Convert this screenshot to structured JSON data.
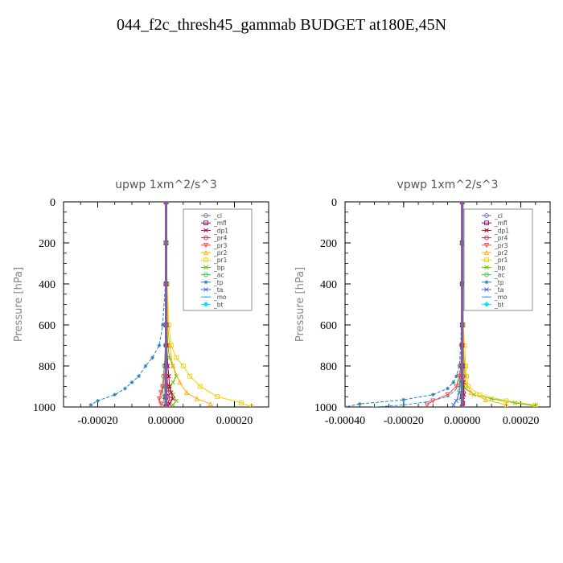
{
  "page": {
    "title": "044_f2c_thresh45_gammab  BUDGET at180E,45N"
  },
  "chart_data": [
    {
      "type": "line",
      "title": "upwp   1xm^2/s^3",
      "ylabel": "Pressure [hPa]",
      "xlim": [
        -0.0003,
        0.0003
      ],
      "ylim": [
        1000,
        0
      ],
      "xticks": [
        -0.0002,
        0,
        0.0002
      ],
      "xtick_labels": [
        "-0.00020",
        "0.00000",
        "0.00020"
      ],
      "yticks": [
        0,
        200,
        400,
        600,
        800,
        1000
      ],
      "ytick_labels": [
        "0",
        "200",
        "400",
        "600",
        "800",
        "1000"
      ],
      "legend": "top-right",
      "grid": false,
      "series": [
        {
          "name": "_cl",
          "color": "#8060a0",
          "marker": "o",
          "x": [
            0,
            0,
            0,
            0,
            0,
            0,
            0
          ],
          "y": [
            0,
            200,
            400,
            600,
            800,
            950,
            1000
          ]
        },
        {
          "name": "_mfl",
          "color": "#800080",
          "marker": "s",
          "x": [
            0,
            0,
            0,
            0,
            0,
            0,
            0
          ],
          "y": [
            0,
            200,
            400,
            600,
            800,
            950,
            1000
          ]
        },
        {
          "name": "_dp1",
          "color": "#a00030",
          "marker": "x",
          "x": [
            0,
            0,
            2e-06,
            5e-06,
            8e-06,
            1e-05,
            1.5e-05,
            2e-05,
            1e-05,
            0
          ],
          "y": [
            0,
            400,
            700,
            800,
            850,
            900,
            930,
            960,
            985,
            1000
          ]
        },
        {
          "name": "_pr4",
          "color": "#e02040",
          "marker": "o",
          "x": [
            0,
            0,
            0,
            2e-06,
            3e-06,
            5e-06,
            8e-06,
            1e-05,
            5e-06,
            0
          ],
          "y": [
            0,
            400,
            700,
            800,
            850,
            900,
            930,
            960,
            985,
            1000
          ]
        },
        {
          "name": "_pr3",
          "color": "#ff4040",
          "marker": "v",
          "x": [
            0,
            0,
            0,
            -2e-06,
            -5e-06,
            -1e-05,
            -1.5e-05,
            -2e-05,
            -1.5e-05,
            0
          ],
          "y": [
            0,
            400,
            700,
            800,
            850,
            900,
            930,
            960,
            985,
            1000
          ]
        },
        {
          "name": "_pr2",
          "color": "#ffb000",
          "marker": "^",
          "x": [
            0,
            0,
            2e-06,
            5e-06,
            1e-05,
            2e-05,
            4e-05,
            6e-05,
            9e-05,
            0.00013
          ],
          "y": [
            0,
            200,
            400,
            600,
            700,
            800,
            880,
            930,
            960,
            985
          ]
        },
        {
          "name": "_pr1",
          "color": "#f0d000",
          "marker": "s",
          "x": [
            0,
            0,
            3e-06,
            8e-06,
            1.5e-05,
            3e-05,
            5e-05,
            7e-05,
            0.0001,
            0.00015,
            0.00022,
            0.00025
          ],
          "y": [
            0,
            200,
            400,
            600,
            700,
            760,
            800,
            850,
            900,
            950,
            980,
            1000
          ]
        },
        {
          "name": "_bp",
          "color": "#60c000",
          "marker": "x",
          "x": [
            0,
            0,
            5e-06,
            1e-05,
            2e-05,
            3e-05,
            2e-05,
            1e-05,
            2e-05,
            3e-05,
            2e-05
          ],
          "y": [
            0,
            400,
            700,
            760,
            800,
            850,
            880,
            910,
            940,
            970,
            990
          ]
        },
        {
          "name": "_ac",
          "color": "#40c040",
          "marker": "o",
          "x": [
            0,
            0,
            -2e-06,
            -5e-06,
            -8e-06,
            -1e-05,
            -8e-06,
            -5e-06,
            0
          ],
          "y": [
            0,
            400,
            700,
            800,
            850,
            900,
            950,
            985,
            1000
          ]
        },
        {
          "name": "_tp",
          "color": "#2080c0",
          "marker": "*",
          "x": [
            0,
            0,
            -2e-06,
            -1e-05,
            -2e-05,
            -4e-05,
            -6e-05,
            -8e-05,
            -0.0001,
            -0.00012,
            -0.00015,
            -0.0002,
            -0.00022
          ],
          "y": [
            0,
            200,
            400,
            600,
            700,
            760,
            800,
            850,
            880,
            910,
            940,
            970,
            990
          ]
        },
        {
          "name": "_ta",
          "color": "#4060e0",
          "marker": "x",
          "x": [
            0,
            0,
            0,
            -2e-06,
            -4e-06,
            -3e-06,
            0
          ],
          "y": [
            0,
            400,
            700,
            800,
            900,
            960,
            1000
          ]
        },
        {
          "name": "_mo",
          "color": "#20a0d0",
          "marker": "-",
          "x": [
            0,
            0,
            0,
            0,
            0
          ],
          "y": [
            0,
            400,
            700,
            900,
            1000
          ]
        },
        {
          "name": "_bt",
          "color": "#00e0ff",
          "marker": "D",
          "x": [
            0,
            0,
            0,
            0,
            0
          ],
          "y": [
            0,
            400,
            700,
            900,
            1000
          ]
        }
      ]
    },
    {
      "type": "line",
      "title": "vpwp   1xm^2/s^3",
      "ylabel": "Pressure [hPa]",
      "xlim": [
        -0.0004,
        0.0003
      ],
      "ylim": [
        1000,
        0
      ],
      "xticks": [
        -0.0004,
        -0.0002,
        0,
        0.0002
      ],
      "xtick_labels": [
        "-0.00040",
        "-0.00020",
        "0.00000",
        "0.00020"
      ],
      "yticks": [
        0,
        200,
        400,
        600,
        800,
        1000
      ],
      "ytick_labels": [
        "0",
        "200",
        "400",
        "600",
        "800",
        "1000"
      ],
      "legend": "top-right",
      "grid": false,
      "series": [
        {
          "name": "_cl",
          "color": "#8060a0",
          "marker": "o",
          "x": [
            0,
            0,
            0,
            0,
            0,
            0,
            0
          ],
          "y": [
            0,
            200,
            400,
            600,
            800,
            950,
            1000
          ]
        },
        {
          "name": "_mfl",
          "color": "#800080",
          "marker": "s",
          "x": [
            0,
            0,
            0,
            0,
            0,
            0,
            0
          ],
          "y": [
            0,
            200,
            400,
            600,
            800,
            950,
            1000
          ]
        },
        {
          "name": "_dp1",
          "color": "#a00030",
          "marker": "x",
          "x": [
            0,
            0,
            0,
            2e-06,
            4e-06,
            6e-06,
            3e-06,
            0
          ],
          "y": [
            0,
            400,
            700,
            800,
            880,
            940,
            980,
            1000
          ]
        },
        {
          "name": "_pr4",
          "color": "#e02040",
          "marker": "o",
          "x": [
            0,
            0,
            0,
            2e-06,
            4e-06,
            2e-06,
            0
          ],
          "y": [
            0,
            400,
            700,
            850,
            930,
            980,
            1000
          ]
        },
        {
          "name": "_pr3",
          "color": "#ff4040",
          "marker": "v",
          "x": [
            0,
            0,
            -2e-06,
            -5e-06,
            -1e-05,
            -2e-05,
            -5e-05,
            -0.0001,
            -0.00012
          ],
          "y": [
            0,
            400,
            700,
            800,
            850,
            900,
            940,
            970,
            990
          ]
        },
        {
          "name": "_pr2",
          "color": "#ffb000",
          "marker": "^",
          "x": [
            0,
            0,
            2e-06,
            5e-06,
            1e-05,
            3e-05,
            8e-05,
            0.00015
          ],
          "y": [
            0,
            200,
            600,
            800,
            880,
            930,
            965,
            990
          ]
        },
        {
          "name": "_pr1",
          "color": "#f0d000",
          "marker": "s",
          "x": [
            0,
            0,
            3e-06,
            8e-06,
            1.2e-05,
            1.5e-05,
            2e-05,
            6e-05,
            0.00015,
            0.00025
          ],
          "y": [
            0,
            200,
            600,
            700,
            800,
            850,
            900,
            940,
            970,
            990
          ]
        },
        {
          "name": "_bp",
          "color": "#60c000",
          "marker": "x",
          "x": [
            0,
            0,
            3e-06,
            8e-06,
            1e-05,
            5e-06,
            1e-05,
            4e-05,
            0.0001,
            0.00018,
            0.00025
          ],
          "y": [
            0,
            400,
            700,
            800,
            850,
            880,
            910,
            940,
            960,
            980,
            995
          ]
        },
        {
          "name": "_ac",
          "color": "#40c040",
          "marker": "o",
          "x": [
            0,
            0,
            -2e-06,
            -5e-06,
            -1e-05,
            -8e-06,
            -4e-06,
            0
          ],
          "y": [
            0,
            400,
            700,
            800,
            880,
            920,
            960,
            1000
          ]
        },
        {
          "name": "_tp",
          "color": "#2080c0",
          "marker": "*",
          "x": [
            0,
            0,
            -5e-06,
            -1e-05,
            -2e-05,
            -3e-05,
            -5e-05,
            -0.0001,
            -0.0002,
            -0.00035,
            -0.0004
          ],
          "y": [
            0,
            400,
            700,
            800,
            850,
            880,
            910,
            940,
            965,
            985,
            1000
          ]
        },
        {
          "name": "_ta",
          "color": "#4060e0",
          "marker": "x",
          "x": [
            0,
            0,
            0,
            -4e-06,
            -1e-05,
            -2e-05,
            -3e-05
          ],
          "y": [
            0,
            400,
            700,
            850,
            930,
            970,
            990
          ]
        },
        {
          "name": "_mo",
          "color": "#20a0d0",
          "marker": "-",
          "x": [
            0,
            0,
            -1e-05,
            -5e-05,
            -0.00012,
            -0.0002,
            -0.0003
          ],
          "y": [
            0,
            700,
            900,
            950,
            975,
            990,
            1000
          ]
        },
        {
          "name": "_bt",
          "color": "#00e0ff",
          "marker": "D",
          "x": [
            0,
            0,
            0,
            0,
            0
          ],
          "y": [
            0,
            400,
            700,
            900,
            1000
          ]
        }
      ]
    }
  ]
}
